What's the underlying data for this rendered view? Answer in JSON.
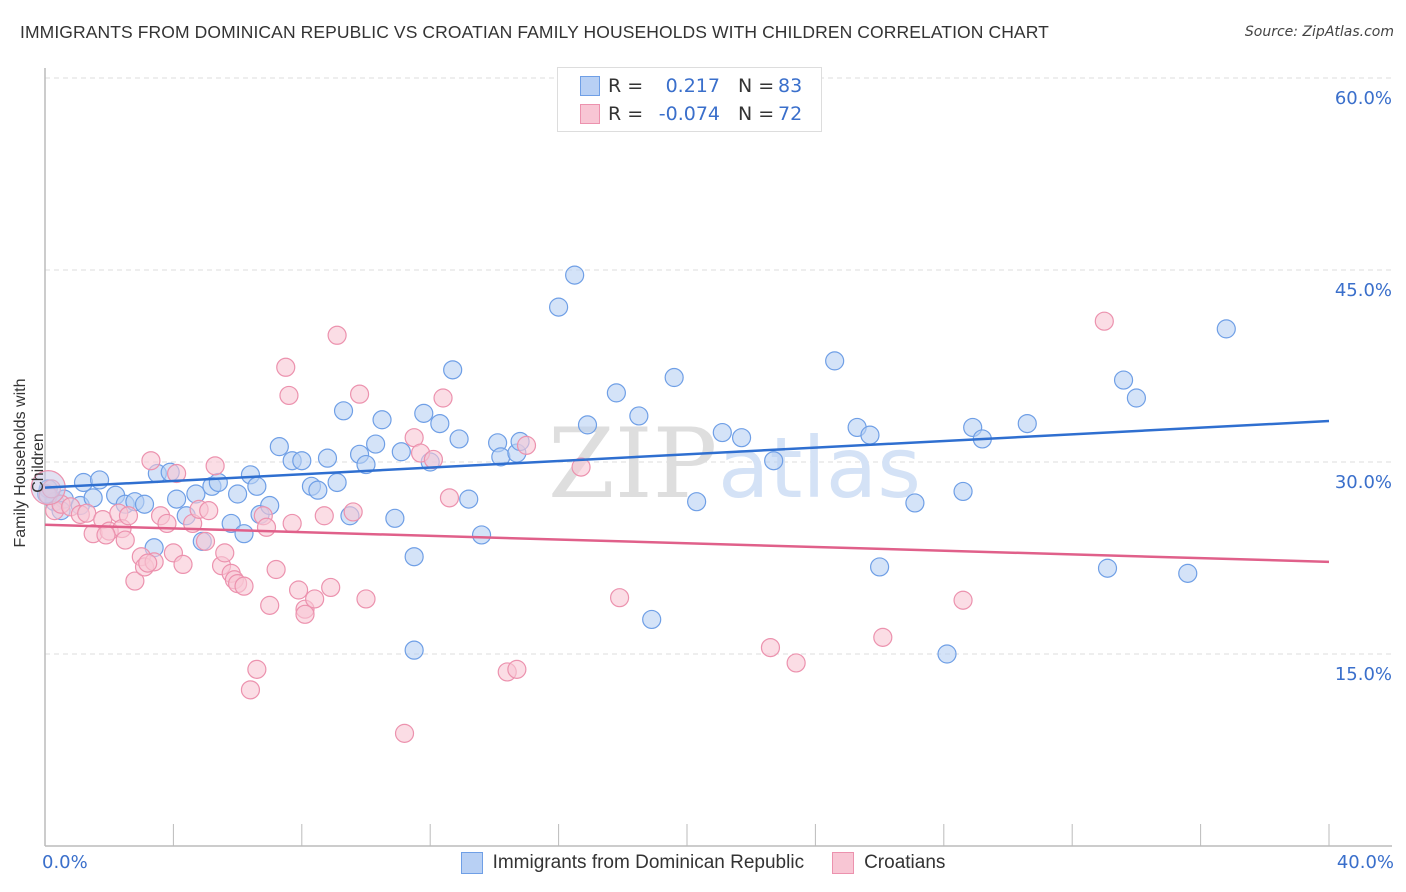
{
  "header": {
    "title": "IMMIGRANTS FROM DOMINICAN REPUBLIC VS CROATIAN FAMILY HOUSEHOLDS WITH CHILDREN CORRELATION CHART",
    "source": "Source: ZipAtlas.com"
  },
  "watermark": {
    "zip": "ZIP",
    "atlas": "atlas"
  },
  "legend": {
    "rows": [
      {
        "r_label": "R =",
        "r_value": "0.217",
        "n_label": "N =",
        "n_value": "83"
      },
      {
        "r_label": "R =",
        "r_value": "-0.074",
        "n_label": "N =",
        "n_value": "72"
      }
    ]
  },
  "chart_data": {
    "type": "scatter",
    "title": "IMMIGRANTS FROM DOMINICAN REPUBLIC VS CROATIAN FAMILY HOUSEHOLDS WITH CHILDREN CORRELATION CHART",
    "xlabel": "",
    "ylabel": "Family Households with Children",
    "xlim": [
      0,
      40
    ],
    "ylim": [
      0,
      60
    ],
    "x_tick_labels": [
      "0.0%",
      "40.0%"
    ],
    "y_ticks": [
      15,
      30,
      45,
      60
    ],
    "y_tick_labels": [
      "15.0%",
      "30.0%",
      "45.0%",
      "60.0%"
    ],
    "grid": "horizontal-dashed",
    "legend_position": "bottom-center",
    "series": [
      {
        "name": "Immigrants from Dominican Republic",
        "color": "#6f9fe6",
        "fill": "#b8d0f4",
        "R": 0.217,
        "N": 83,
        "trend": {
          "x": [
            0,
            40
          ],
          "y": [
            28.0,
            33.2
          ]
        },
        "points": [
          [
            0.1,
            27.9
          ],
          [
            0.3,
            26.9
          ],
          [
            0.6,
            27.1
          ],
          [
            1.1,
            26.6
          ],
          [
            1.2,
            28.4
          ],
          [
            1.5,
            27.2
          ],
          [
            1.7,
            28.6
          ],
          [
            2.2,
            27.4
          ],
          [
            2.5,
            26.7
          ],
          [
            2.8,
            26.9
          ],
          [
            3.1,
            26.7
          ],
          [
            3.4,
            23.3
          ],
          [
            3.5,
            29.1
          ],
          [
            3.9,
            29.2
          ],
          [
            4.1,
            27.1
          ],
          [
            4.4,
            25.8
          ],
          [
            4.7,
            27.5
          ],
          [
            4.9,
            23.8
          ],
          [
            5.2,
            28.1
          ],
          [
            5.4,
            28.4
          ],
          [
            5.8,
            25.2
          ],
          [
            6.0,
            27.5
          ],
          [
            6.2,
            24.4
          ],
          [
            6.4,
            29.0
          ],
          [
            6.6,
            28.1
          ],
          [
            6.7,
            25.9
          ],
          [
            7.0,
            26.6
          ],
          [
            7.3,
            31.2
          ],
          [
            7.7,
            30.1
          ],
          [
            8.0,
            30.1
          ],
          [
            8.3,
            28.1
          ],
          [
            8.5,
            27.8
          ],
          [
            8.8,
            30.3
          ],
          [
            9.1,
            28.4
          ],
          [
            9.3,
            34.0
          ],
          [
            9.5,
            25.8
          ],
          [
            9.8,
            30.6
          ],
          [
            10.0,
            29.8
          ],
          [
            10.3,
            31.4
          ],
          [
            10.5,
            33.3
          ],
          [
            10.9,
            25.6
          ],
          [
            11.1,
            30.8
          ],
          [
            11.5,
            22.6
          ],
          [
            11.5,
            15.3
          ],
          [
            11.8,
            33.8
          ],
          [
            12.0,
            30.0
          ],
          [
            12.3,
            33.0
          ],
          [
            12.7,
            37.2
          ],
          [
            12.9,
            31.8
          ],
          [
            13.2,
            27.1
          ],
          [
            13.6,
            24.3
          ],
          [
            14.1,
            31.5
          ],
          [
            14.2,
            30.4
          ],
          [
            14.7,
            30.7
          ],
          [
            14.8,
            31.6
          ],
          [
            16.0,
            42.1
          ],
          [
            16.5,
            44.6
          ],
          [
            16.9,
            32.9
          ],
          [
            17.8,
            35.4
          ],
          [
            18.5,
            33.6
          ],
          [
            18.9,
            17.7
          ],
          [
            19.6,
            36.6
          ],
          [
            20.3,
            26.9
          ],
          [
            21.1,
            32.3
          ],
          [
            21.7,
            31.9
          ],
          [
            22.7,
            30.1
          ],
          [
            24.6,
            37.9
          ],
          [
            25.3,
            32.7
          ],
          [
            25.7,
            32.1
          ],
          [
            26.0,
            21.8
          ],
          [
            27.1,
            26.8
          ],
          [
            28.1,
            15.0
          ],
          [
            28.6,
            27.7
          ],
          [
            28.9,
            32.7
          ],
          [
            29.2,
            31.8
          ],
          [
            30.6,
            33.0
          ],
          [
            33.1,
            21.7
          ],
          [
            33.6,
            36.4
          ],
          [
            34.0,
            35.0
          ],
          [
            35.6,
            21.3
          ],
          [
            36.8,
            40.4
          ],
          [
            0.05,
            27.5
          ],
          [
            0.5,
            26.2
          ]
        ]
      },
      {
        "name": "Croatians",
        "color": "#ec92ae",
        "fill": "#f8c6d4",
        "R": -0.074,
        "N": 72,
        "trend": {
          "x": [
            0,
            40
          ],
          "y": [
            25.1,
            22.2
          ]
        },
        "points": [
          [
            0.1,
            27.4
          ],
          [
            0.3,
            26.2
          ],
          [
            0.5,
            26.7
          ],
          [
            0.8,
            26.5
          ],
          [
            1.1,
            25.9
          ],
          [
            1.3,
            26.0
          ],
          [
            1.5,
            24.4
          ],
          [
            1.8,
            25.5
          ],
          [
            2.0,
            24.6
          ],
          [
            2.3,
            26.0
          ],
          [
            2.4,
            24.8
          ],
          [
            2.5,
            23.9
          ],
          [
            2.6,
            25.8
          ],
          [
            2.8,
            20.7
          ],
          [
            3.0,
            22.6
          ],
          [
            3.1,
            21.8
          ],
          [
            3.3,
            30.1
          ],
          [
            3.4,
            22.2
          ],
          [
            3.6,
            25.8
          ],
          [
            3.8,
            25.2
          ],
          [
            4.0,
            22.9
          ],
          [
            4.1,
            29.1
          ],
          [
            4.3,
            22.0
          ],
          [
            4.6,
            25.2
          ],
          [
            4.8,
            26.3
          ],
          [
            5.0,
            23.8
          ],
          [
            5.1,
            26.2
          ],
          [
            5.3,
            29.7
          ],
          [
            5.5,
            21.9
          ],
          [
            5.6,
            22.9
          ],
          [
            5.8,
            21.3
          ],
          [
            5.9,
            20.8
          ],
          [
            6.0,
            20.5
          ],
          [
            6.2,
            20.3
          ],
          [
            6.4,
            12.2
          ],
          [
            6.6,
            13.8
          ],
          [
            6.8,
            25.8
          ],
          [
            7.0,
            18.8
          ],
          [
            7.2,
            21.6
          ],
          [
            7.5,
            37.4
          ],
          [
            7.6,
            35.2
          ],
          [
            7.7,
            25.2
          ],
          [
            7.9,
            20.0
          ],
          [
            8.1,
            18.5
          ],
          [
            8.1,
            18.1
          ],
          [
            8.4,
            19.3
          ],
          [
            8.7,
            25.8
          ],
          [
            8.9,
            20.2
          ],
          [
            9.1,
            39.9
          ],
          [
            9.6,
            26.1
          ],
          [
            9.8,
            35.3
          ],
          [
            10.0,
            19.3
          ],
          [
            11.2,
            8.8
          ],
          [
            11.5,
            31.9
          ],
          [
            11.7,
            30.7
          ],
          [
            12.1,
            30.2
          ],
          [
            12.4,
            35.0
          ],
          [
            12.6,
            27.2
          ],
          [
            14.4,
            13.6
          ],
          [
            14.7,
            13.8
          ],
          [
            15.0,
            31.3
          ],
          [
            16.7,
            29.6
          ],
          [
            17.9,
            19.4
          ],
          [
            22.6,
            15.5
          ],
          [
            23.4,
            14.3
          ],
          [
            26.1,
            16.3
          ],
          [
            28.6,
            19.2
          ],
          [
            33.0,
            41.0
          ],
          [
            0.2,
            27.9
          ],
          [
            1.9,
            24.3
          ],
          [
            6.9,
            24.9
          ],
          [
            3.2,
            22.1
          ]
        ]
      }
    ]
  },
  "bottom_legend": {
    "items": [
      {
        "label": "Immigrants from Dominican Republic"
      },
      {
        "label": "Croatians"
      }
    ]
  },
  "axes": {
    "x_min_label": "0.0%",
    "x_max_label": "40.0%",
    "ylabel": "Family Households with Children"
  },
  "colors": {
    "blue_line": "#2f6fd0",
    "pink_line": "#e0608a",
    "tick_label": "#3a6fcb"
  }
}
